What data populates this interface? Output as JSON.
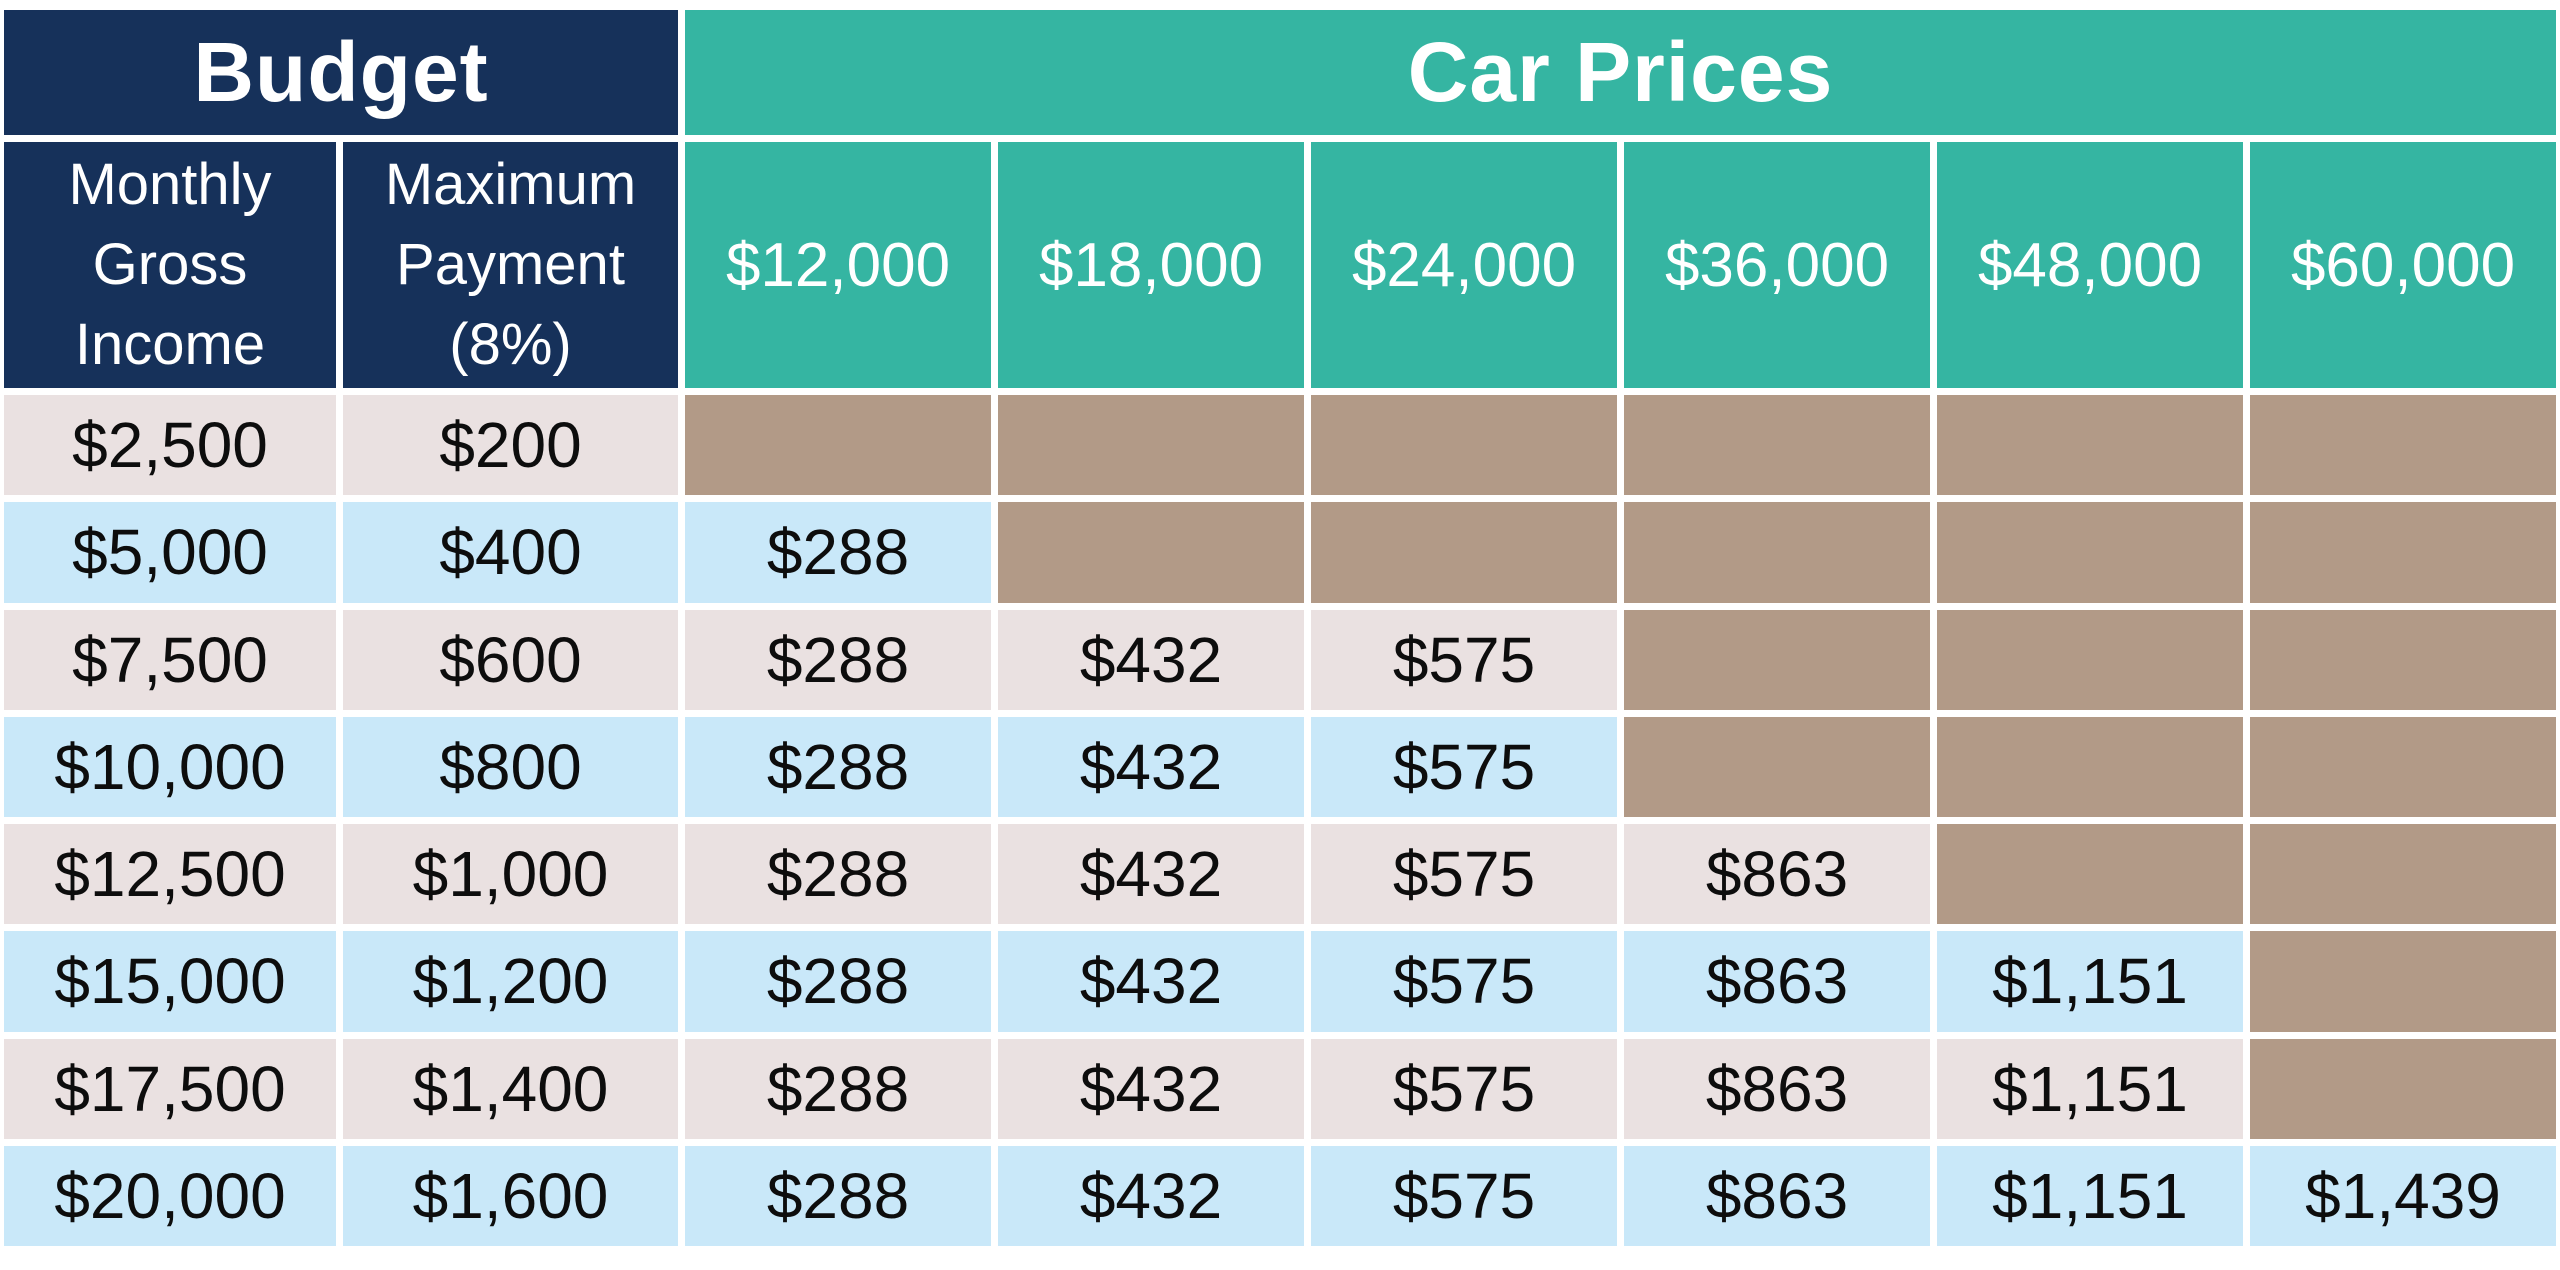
{
  "colors": {
    "navy_header": "#16315a",
    "teal_header": "#35b5a2",
    "blocked_tan": "#b29a87",
    "row_beige": "#eae1e1",
    "row_blue": "#c9e8f9",
    "grid_gap_white": "#ffffff",
    "header_text": "#ffffff",
    "data_text": "#0d0d0d"
  },
  "chart_data": {
    "type": "table",
    "title_left": "Budget",
    "title_right": "Car Prices",
    "budget_column_headers": {
      "income": "Monthly Gross Income",
      "payment": "Maximum Payment (8%)"
    },
    "price_columns": [
      "$12,000",
      "$18,000",
      "$24,000",
      "$36,000",
      "$48,000",
      "$60,000"
    ],
    "note_blocked_cells": "null payment = unaffordable (tan blocked cell)",
    "rows": [
      {
        "income": "$2,500",
        "payment": "$200",
        "payments": [
          null,
          null,
          null,
          null,
          null,
          null
        ]
      },
      {
        "income": "$5,000",
        "payment": "$400",
        "payments": [
          "$288",
          null,
          null,
          null,
          null,
          null
        ]
      },
      {
        "income": "$7,500",
        "payment": "$600",
        "payments": [
          "$288",
          "$432",
          "$575",
          null,
          null,
          null
        ]
      },
      {
        "income": "$10,000",
        "payment": "$800",
        "payments": [
          "$288",
          "$432",
          "$575",
          null,
          null,
          null
        ]
      },
      {
        "income": "$12,500",
        "payment": "$1,000",
        "payments": [
          "$288",
          "$432",
          "$575",
          "$863",
          null,
          null
        ]
      },
      {
        "income": "$15,000",
        "payment": "$1,200",
        "payments": [
          "$288",
          "$432",
          "$575",
          "$863",
          "$1,151",
          null
        ]
      },
      {
        "income": "$17,500",
        "payment": "$1,400",
        "payments": [
          "$288",
          "$432",
          "$575",
          "$863",
          "$1,151",
          null
        ]
      },
      {
        "income": "$20,000",
        "payment": "$1,600",
        "payments": [
          "$288",
          "$432",
          "$575",
          "$863",
          "$1,151",
          "$1,439"
        ]
      }
    ]
  }
}
